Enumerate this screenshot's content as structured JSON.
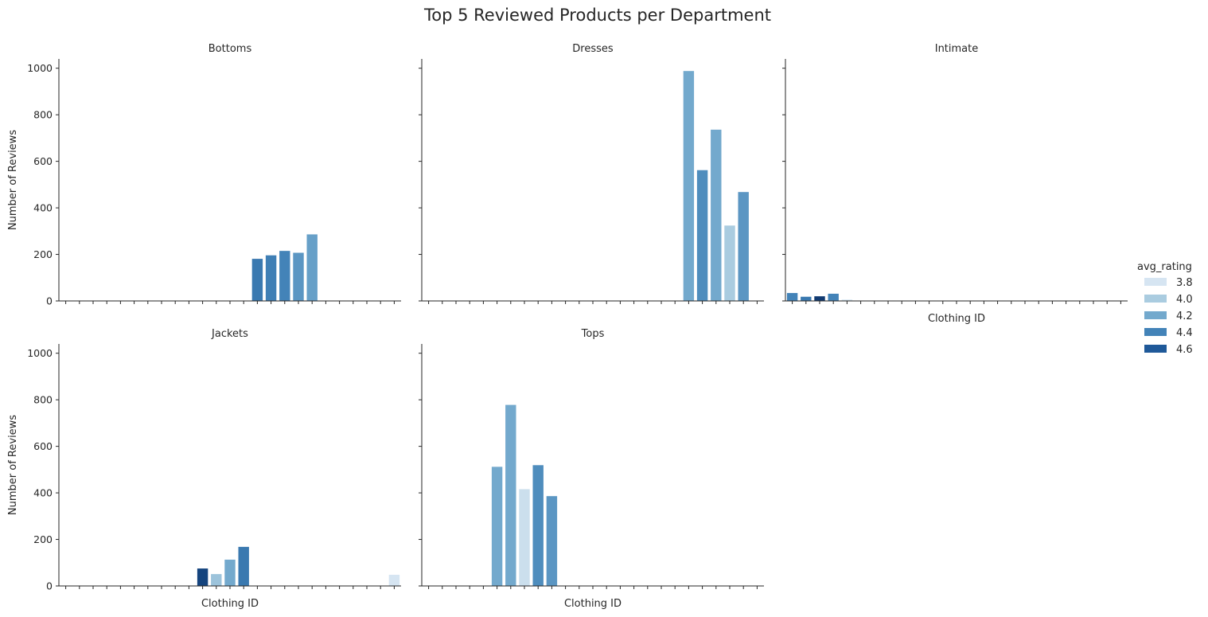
{
  "chart_data": {
    "type": "bar",
    "title": "Top 5 Reviewed Products per Department",
    "ylabel": "Number of Reviews",
    "xlabel": "Clothing ID",
    "ylim": [
      0,
      1040
    ],
    "yticks": [
      0,
      200,
      400,
      600,
      800,
      1000
    ],
    "category_count": 25,
    "legend": {
      "title": "avg_rating",
      "position": "right",
      "entries": [
        {
          "label": "3.8",
          "color": "#d6e5f2"
        },
        {
          "label": "4.0",
          "color": "#aacce0"
        },
        {
          "label": "4.2",
          "color": "#73a9cd"
        },
        {
          "label": "4.4",
          "color": "#4383b8"
        },
        {
          "label": "4.6",
          "color": "#1f5999"
        }
      ]
    },
    "facets": [
      {
        "name": "Bottoms",
        "bars": [
          {
            "slot": 14,
            "value": 181,
            "rating": 4.45
          },
          {
            "slot": 15,
            "value": 196,
            "rating": 4.42
          },
          {
            "slot": 16,
            "value": 215,
            "rating": 4.4
          },
          {
            "slot": 17,
            "value": 207,
            "rating": 4.3
          },
          {
            "slot": 18,
            "value": 286,
            "rating": 4.25
          }
        ]
      },
      {
        "name": "Dresses",
        "bars": [
          {
            "slot": 19,
            "value": 988,
            "rating": 4.2
          },
          {
            "slot": 20,
            "value": 562,
            "rating": 4.35
          },
          {
            "slot": 21,
            "value": 736,
            "rating": 4.2
          },
          {
            "slot": 22,
            "value": 324,
            "rating": 4.0
          },
          {
            "slot": 23,
            "value": 468,
            "rating": 4.3
          }
        ]
      },
      {
        "name": "Intimate",
        "bars": [
          {
            "slot": 0,
            "value": 34,
            "rating": 4.4
          },
          {
            "slot": 1,
            "value": 18,
            "rating": 4.45
          },
          {
            "slot": 2,
            "value": 20,
            "rating": 4.75
          },
          {
            "slot": 3,
            "value": 31,
            "rating": 4.4
          },
          {
            "slot": 4,
            "value": 6,
            "rating": 3.8
          }
        ]
      },
      {
        "name": "Jackets",
        "bars": [
          {
            "slot": 10,
            "value": 75,
            "rating": 4.7
          },
          {
            "slot": 11,
            "value": 51,
            "rating": 4.05
          },
          {
            "slot": 12,
            "value": 113,
            "rating": 4.2
          },
          {
            "slot": 13,
            "value": 168,
            "rating": 4.45
          },
          {
            "slot": 24,
            "value": 48,
            "rating": 3.8
          }
        ]
      },
      {
        "name": "Tops",
        "bars": [
          {
            "slot": 5,
            "value": 512,
            "rating": 4.2
          },
          {
            "slot": 6,
            "value": 778,
            "rating": 4.2
          },
          {
            "slot": 7,
            "value": 416,
            "rating": 3.85
          },
          {
            "slot": 8,
            "value": 519,
            "rating": 4.35
          },
          {
            "slot": 9,
            "value": 386,
            "rating": 4.3
          }
        ]
      }
    ]
  }
}
